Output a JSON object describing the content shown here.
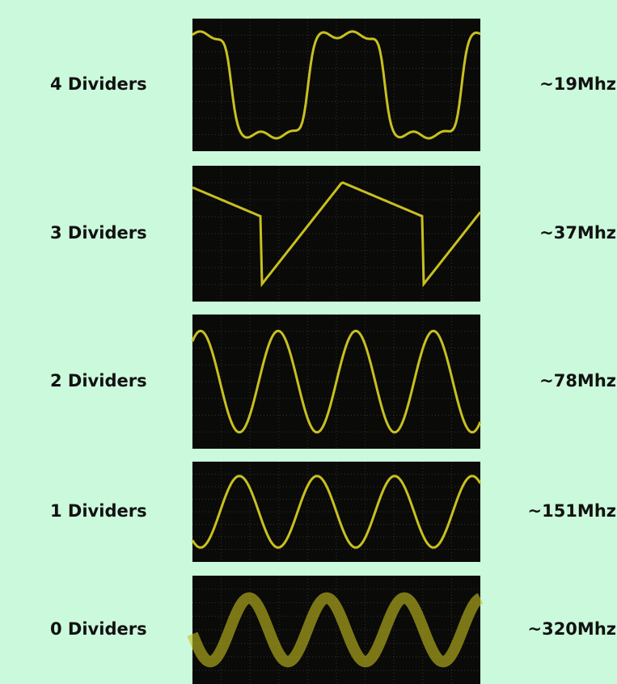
{
  "rows": [
    {
      "label": "4 Dividers",
      "frequency": "~19Mhz"
    },
    {
      "label": "3 Dividers",
      "frequency": "~37Mhz"
    },
    {
      "label": "2 Dividers",
      "frequency": "~78Mhz"
    },
    {
      "label": "1 Dividers",
      "frequency": "~151Mhz"
    },
    {
      "label": "0 Dividers",
      "frequency": "~320Mhz"
    }
  ]
}
